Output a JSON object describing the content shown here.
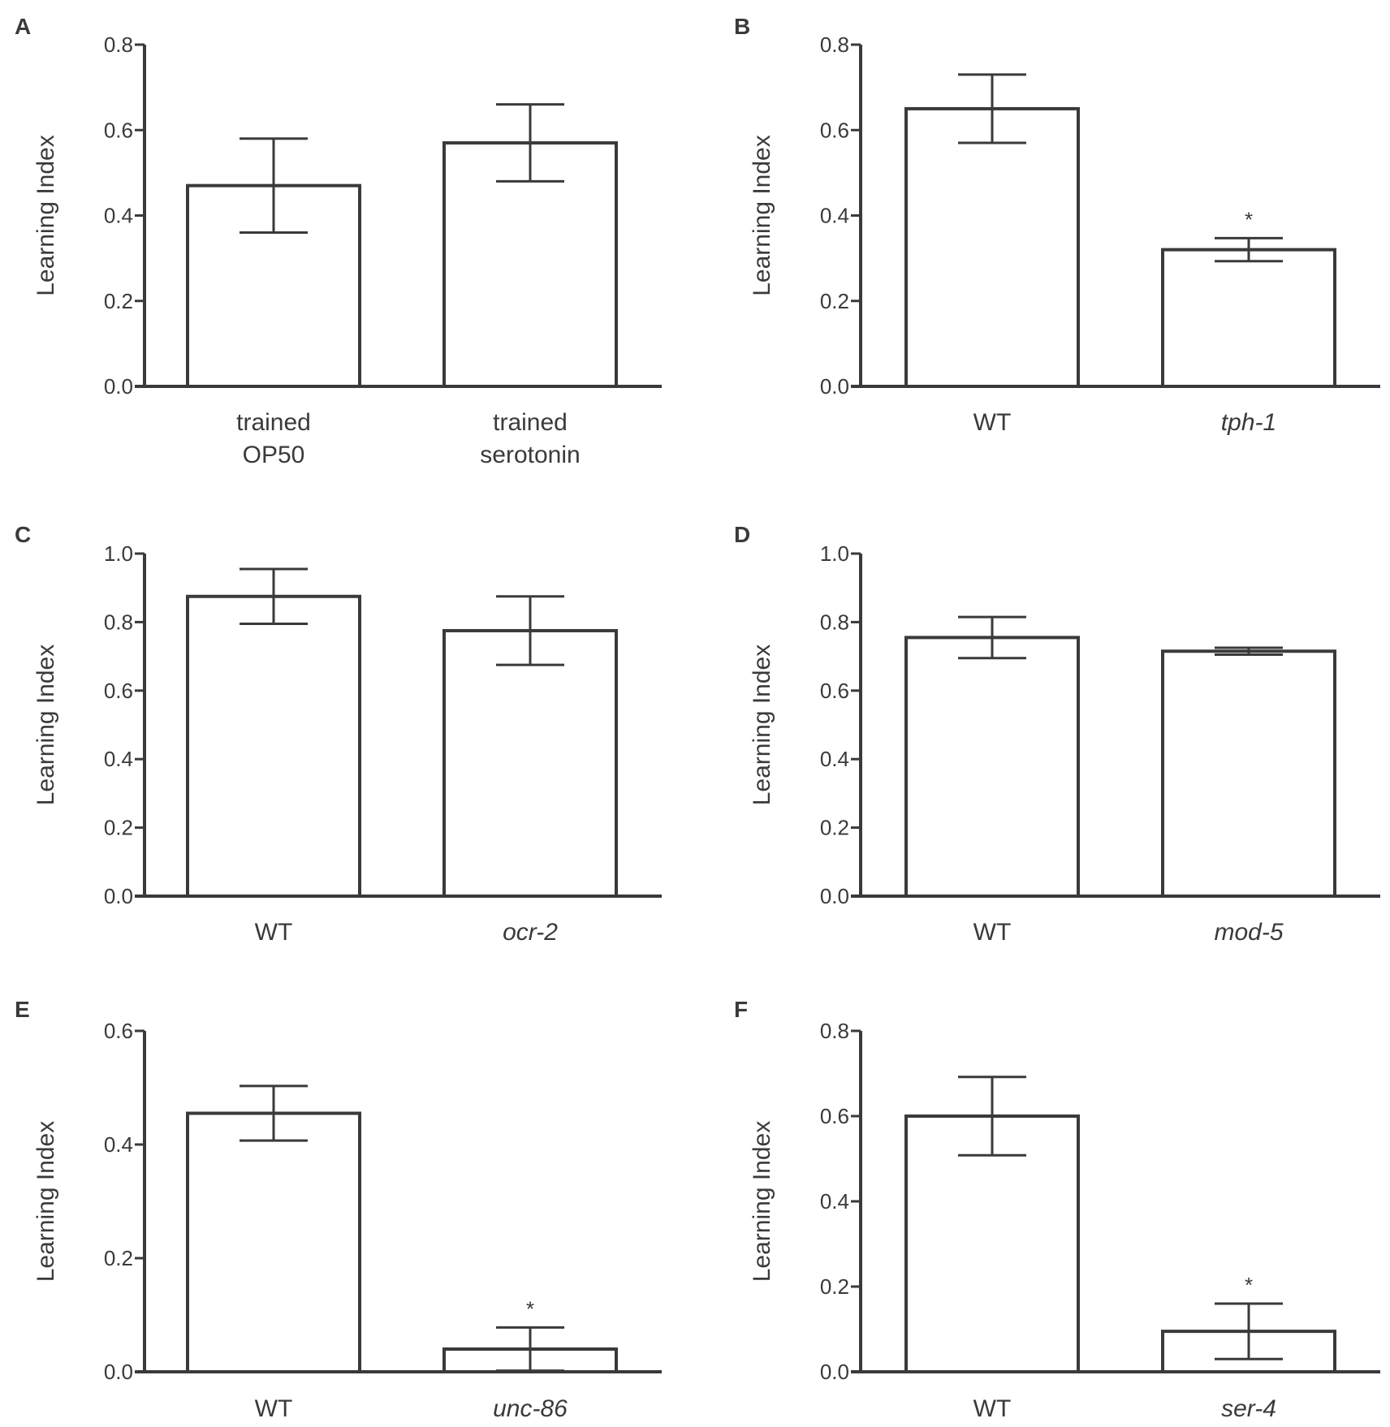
{
  "colors": {
    "ink": "#3a3a3a",
    "bar_fill": "#ffffff",
    "background": "#ffffff"
  },
  "chart_data": [
    {
      "panel_label": "A",
      "type": "bar",
      "ylabel": "Learning Index",
      "ylim": [
        0,
        0.8
      ],
      "yticks": [
        "0.0",
        "0.2",
        "0.4",
        "0.6",
        "0.8"
      ],
      "categories": [
        [
          "trained",
          "OP50"
        ],
        [
          "trained",
          "serotonin"
        ]
      ],
      "italic": [
        false,
        false
      ],
      "values": [
        0.47,
        0.57
      ],
      "errors": [
        0.11,
        0.09
      ],
      "significance": [
        "",
        ""
      ]
    },
    {
      "panel_label": "B",
      "type": "bar",
      "ylabel": "Learning Index",
      "ylim": [
        0,
        0.8
      ],
      "yticks": [
        "0.0",
        "0.2",
        "0.4",
        "0.6",
        "0.8"
      ],
      "categories": [
        [
          "WT"
        ],
        [
          "tph-1"
        ]
      ],
      "italic": [
        false,
        true
      ],
      "values": [
        0.65,
        0.32
      ],
      "errors": [
        0.08,
        0.027
      ],
      "significance": [
        "",
        "*"
      ]
    },
    {
      "panel_label": "C",
      "type": "bar",
      "ylabel": "Learning Index",
      "ylim": [
        0,
        1.0
      ],
      "yticks": [
        "0.0",
        "0.2",
        "0.4",
        "0.6",
        "0.8",
        "1.0"
      ],
      "categories": [
        [
          "WT"
        ],
        [
          "ocr-2"
        ]
      ],
      "italic": [
        false,
        true
      ],
      "values": [
        0.875,
        0.775
      ],
      "errors": [
        0.08,
        0.1
      ],
      "significance": [
        "",
        ""
      ]
    },
    {
      "panel_label": "D",
      "type": "bar",
      "ylabel": "Learning Index",
      "ylim": [
        0,
        1.0
      ],
      "yticks": [
        "0.0",
        "0.2",
        "0.4",
        "0.6",
        "0.8",
        "1.0"
      ],
      "categories": [
        [
          "WT"
        ],
        [
          "mod-5"
        ]
      ],
      "italic": [
        false,
        true
      ],
      "values": [
        0.755,
        0.715
      ],
      "errors": [
        0.06,
        0.01
      ],
      "significance": [
        "",
        ""
      ]
    },
    {
      "panel_label": "E",
      "type": "bar",
      "ylabel": "Learning Index",
      "ylim": [
        0,
        0.6
      ],
      "yticks": [
        "0.0",
        "0.2",
        "0.4",
        "0.6"
      ],
      "categories": [
        [
          "WT"
        ],
        [
          "unc-86"
        ]
      ],
      "italic": [
        false,
        true
      ],
      "values": [
        0.455,
        0.04
      ],
      "errors": [
        0.048,
        0.038
      ],
      "significance": [
        "",
        "*"
      ]
    },
    {
      "panel_label": "F",
      "type": "bar",
      "ylabel": "Learning Index",
      "ylim": [
        0,
        0.8
      ],
      "yticks": [
        "0.0",
        "0.2",
        "0.4",
        "0.6",
        "0.8"
      ],
      "categories": [
        [
          "WT"
        ],
        [
          "ser-4"
        ]
      ],
      "italic": [
        false,
        true
      ],
      "values": [
        0.6,
        0.095
      ],
      "errors": [
        0.092,
        0.065
      ],
      "significance": [
        "",
        "*"
      ]
    }
  ]
}
